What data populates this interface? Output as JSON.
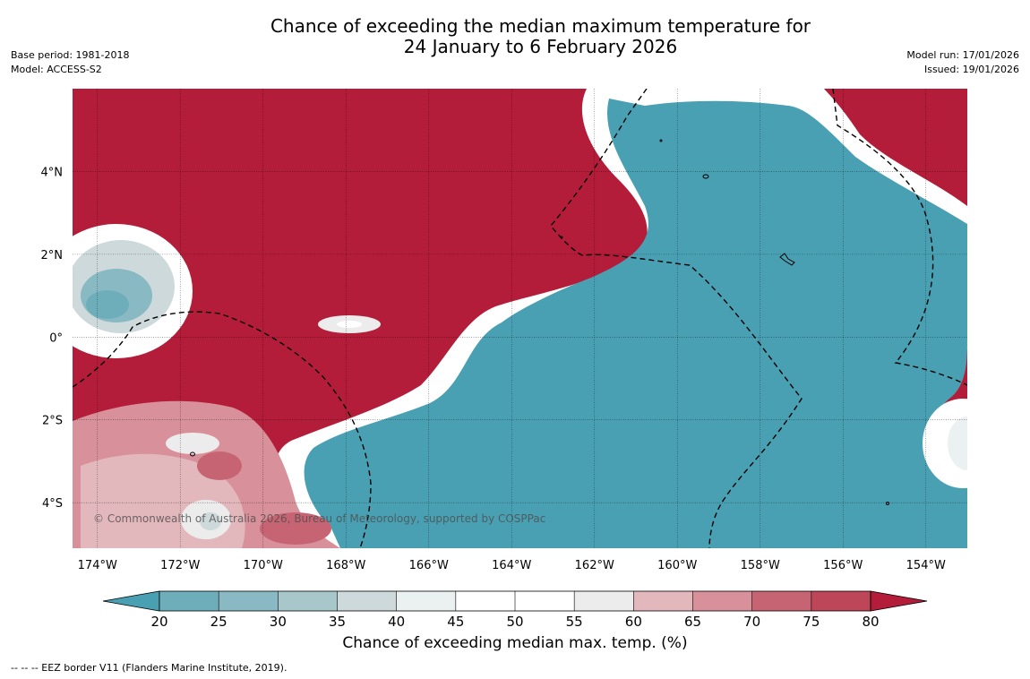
{
  "title": {
    "line1": "Chance of exceeding the median maximum temperature for",
    "line2": "24 January to 6 February 2026"
  },
  "meta": {
    "base_period": "Base period: 1981-2018",
    "model": "Model: ACCESS-S2",
    "model_run": "Model run: 17/01/2026",
    "issued": "Issued: 19/01/2026"
  },
  "map": {
    "lon_labels": [
      "174°W",
      "172°W",
      "170°W",
      "168°W",
      "166°W",
      "164°W",
      "162°W",
      "160°W",
      "158°W",
      "156°W",
      "154°W"
    ],
    "lat_labels": [
      "4°N",
      "2°N",
      "0°",
      "2°S",
      "4°S"
    ],
    "lon_values": [
      -174,
      -172,
      -170,
      -168,
      -166,
      -164,
      -162,
      -160,
      -158,
      -156,
      -154
    ],
    "lat_values": [
      4,
      2,
      0,
      -2,
      -4
    ],
    "lon_range": [
      -174.6,
      -153
    ],
    "lat_range": [
      -5.1,
      6
    ],
    "copyright": "© Commonwealth of Australia 2026, Bureau of Meteorology, supported by COSPPac"
  },
  "colorbar": {
    "title": "Chance of exceeding median max. temp. (%)",
    "ticks": [
      "20",
      "25",
      "30",
      "35",
      "40",
      "45",
      "50",
      "55",
      "60",
      "65",
      "70",
      "75",
      "80"
    ],
    "colors": [
      "#4aa0b3",
      "#6eaebb",
      "#89b9c2",
      "#a8c7cb",
      "#cdd9da",
      "#ebf0f0",
      "#ffffff",
      "#ffffff",
      "#ececec",
      "#e3b8bd",
      "#d8909a",
      "#c76474",
      "#bd4659"
    ],
    "low_color": "#4aa0b3",
    "high_color": "#b31d39",
    "hot_color": "#b31d39",
    "cool_color": "#4aa0b3"
  },
  "footnote": "--  --  -- EEZ border V11 (Flanders Marine Institute, 2019)."
}
